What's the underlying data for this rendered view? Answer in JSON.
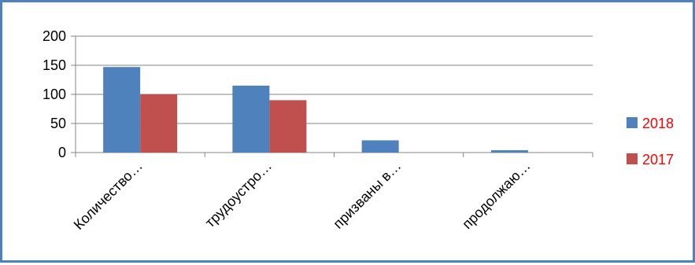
{
  "chart_data": {
    "type": "bar",
    "categories": [
      "Количество…",
      "трудоустро…",
      "призваны в…",
      "продолжаю…"
    ],
    "series": [
      {
        "name": "2018",
        "values": [
          147,
          115,
          21,
          4
        ],
        "color": "#4f81bd"
      },
      {
        "name": "2017",
        "values": [
          100,
          90,
          0,
          0
        ],
        "color": "#c0504d"
      }
    ],
    "ylim": [
      0,
      200
    ],
    "yticks": [
      0,
      50,
      100,
      150,
      200
    ],
    "grid": true,
    "legend_position": "right",
    "legend_text_color": "#ff0000",
    "frame_color": "#4f81bd"
  }
}
